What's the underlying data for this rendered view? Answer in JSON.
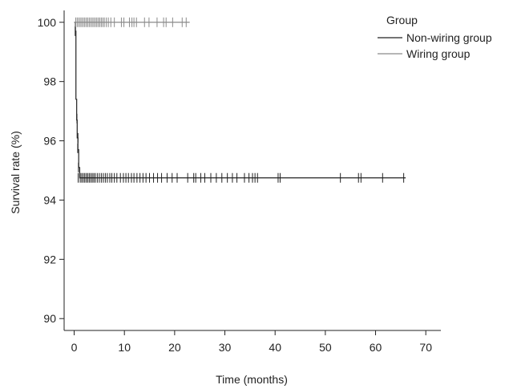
{
  "chart_data": {
    "type": "line",
    "subtype": "kaplan-meier",
    "title": "",
    "xlabel": "Time (months)",
    "ylabel": "Survival rate (%)",
    "xlim": [
      -2,
      73
    ],
    "ylim": [
      89.6,
      100.4
    ],
    "xticks": [
      0,
      10,
      20,
      30,
      40,
      50,
      60,
      70
    ],
    "yticks": [
      90,
      92,
      94,
      96,
      98,
      100
    ],
    "grid": false,
    "legend": {
      "title": "Group",
      "position": "top-right"
    },
    "series": [
      {
        "name": "Non-wiring group",
        "color": "#222222",
        "steps": [
          {
            "x": 0,
            "y": 100
          },
          {
            "x": 0.25,
            "y": 99.7
          },
          {
            "x": 0.35,
            "y": 97.4
          },
          {
            "x": 0.5,
            "y": 96.7
          },
          {
            "x": 0.6,
            "y": 96.1
          },
          {
            "x": 0.75,
            "y": 95.7
          },
          {
            "x": 0.9,
            "y": 95.1
          },
          {
            "x": 1.1,
            "y": 94.75
          }
        ],
        "end_x": 66,
        "censored": [
          {
            "x": 0.2,
            "y": 99.7
          },
          {
            "x": 0.55,
            "y": 96.75
          },
          {
            "x": 0.75,
            "y": 96.1
          },
          {
            "x": 0.7,
            "y": 95.75
          },
          {
            "x": 0.85,
            "y": 95.1
          },
          {
            "x": 0.8,
            "y": 94.75
          },
          {
            "x": 1.2,
            "y": 94.75
          },
          {
            "x": 1.5,
            "y": 94.75
          },
          {
            "x": 1.8,
            "y": 94.75
          },
          {
            "x": 2.1,
            "y": 94.75
          },
          {
            "x": 2.4,
            "y": 94.75
          },
          {
            "x": 2.7,
            "y": 94.75
          },
          {
            "x": 3.0,
            "y": 94.75
          },
          {
            "x": 3.3,
            "y": 94.75
          },
          {
            "x": 3.6,
            "y": 94.75
          },
          {
            "x": 3.9,
            "y": 94.75
          },
          {
            "x": 4.2,
            "y": 94.75
          },
          {
            "x": 4.6,
            "y": 94.75
          },
          {
            "x": 5.0,
            "y": 94.75
          },
          {
            "x": 5.4,
            "y": 94.75
          },
          {
            "x": 5.8,
            "y": 94.75
          },
          {
            "x": 6.2,
            "y": 94.75
          },
          {
            "x": 6.6,
            "y": 94.75
          },
          {
            "x": 7.1,
            "y": 94.75
          },
          {
            "x": 7.5,
            "y": 94.75
          },
          {
            "x": 8.0,
            "y": 94.75
          },
          {
            "x": 8.5,
            "y": 94.75
          },
          {
            "x": 9.2,
            "y": 94.75
          },
          {
            "x": 9.8,
            "y": 94.75
          },
          {
            "x": 10.3,
            "y": 94.75
          },
          {
            "x": 10.8,
            "y": 94.75
          },
          {
            "x": 11.4,
            "y": 94.75
          },
          {
            "x": 11.9,
            "y": 94.75
          },
          {
            "x": 12.5,
            "y": 94.75
          },
          {
            "x": 13.1,
            "y": 94.75
          },
          {
            "x": 13.7,
            "y": 94.75
          },
          {
            "x": 14.3,
            "y": 94.75
          },
          {
            "x": 15.0,
            "y": 94.75
          },
          {
            "x": 15.8,
            "y": 94.75
          },
          {
            "x": 16.6,
            "y": 94.75
          },
          {
            "x": 17.4,
            "y": 94.75
          },
          {
            "x": 18.5,
            "y": 94.75
          },
          {
            "x": 19.5,
            "y": 94.75
          },
          {
            "x": 20.5,
            "y": 94.75
          },
          {
            "x": 22.6,
            "y": 94.75
          },
          {
            "x": 23.8,
            "y": 94.75
          },
          {
            "x": 24.2,
            "y": 94.75
          },
          {
            "x": 25.2,
            "y": 94.75
          },
          {
            "x": 26.0,
            "y": 94.75
          },
          {
            "x": 27.2,
            "y": 94.75
          },
          {
            "x": 28.3,
            "y": 94.75
          },
          {
            "x": 29.4,
            "y": 94.75
          },
          {
            "x": 30.5,
            "y": 94.75
          },
          {
            "x": 31.5,
            "y": 94.75
          },
          {
            "x": 32.4,
            "y": 94.75
          },
          {
            "x": 33.9,
            "y": 94.75
          },
          {
            "x": 34.8,
            "y": 94.75
          },
          {
            "x": 35.5,
            "y": 94.75
          },
          {
            "x": 36.0,
            "y": 94.75
          },
          {
            "x": 36.5,
            "y": 94.75
          },
          {
            "x": 40.6,
            "y": 94.75
          },
          {
            "x": 41.0,
            "y": 94.75
          },
          {
            "x": 53.0,
            "y": 94.75
          },
          {
            "x": 56.6,
            "y": 94.75
          },
          {
            "x": 57.1,
            "y": 94.75
          },
          {
            "x": 61.4,
            "y": 94.75
          },
          {
            "x": 65.6,
            "y": 94.75
          }
        ]
      },
      {
        "name": "Wiring group",
        "color": "#8a8a8a",
        "steps": [
          {
            "x": 0,
            "y": 100
          }
        ],
        "end_x": 23,
        "censored": [
          {
            "x": 0.3,
            "y": 100
          },
          {
            "x": 0.6,
            "y": 100
          },
          {
            "x": 0.9,
            "y": 100
          },
          {
            "x": 1.2,
            "y": 100
          },
          {
            "x": 1.5,
            "y": 100
          },
          {
            "x": 1.8,
            "y": 100
          },
          {
            "x": 2.1,
            "y": 100
          },
          {
            "x": 2.4,
            "y": 100
          },
          {
            "x": 2.7,
            "y": 100
          },
          {
            "x": 3.0,
            "y": 100
          },
          {
            "x": 3.3,
            "y": 100
          },
          {
            "x": 3.6,
            "y": 100
          },
          {
            "x": 3.9,
            "y": 100
          },
          {
            "x": 4.2,
            "y": 100
          },
          {
            "x": 4.5,
            "y": 100
          },
          {
            "x": 4.8,
            "y": 100
          },
          {
            "x": 5.1,
            "y": 100
          },
          {
            "x": 5.4,
            "y": 100
          },
          {
            "x": 5.7,
            "y": 100
          },
          {
            "x": 6.0,
            "y": 100
          },
          {
            "x": 6.4,
            "y": 100
          },
          {
            "x": 6.8,
            "y": 100
          },
          {
            "x": 7.3,
            "y": 100
          },
          {
            "x": 8.0,
            "y": 100
          },
          {
            "x": 9.4,
            "y": 100
          },
          {
            "x": 9.9,
            "y": 100
          },
          {
            "x": 11.0,
            "y": 100
          },
          {
            "x": 11.5,
            "y": 100
          },
          {
            "x": 11.9,
            "y": 100
          },
          {
            "x": 12.4,
            "y": 100
          },
          {
            "x": 14.0,
            "y": 100
          },
          {
            "x": 14.9,
            "y": 100
          },
          {
            "x": 16.5,
            "y": 100
          },
          {
            "x": 17.8,
            "y": 100
          },
          {
            "x": 18.3,
            "y": 100
          },
          {
            "x": 19.6,
            "y": 100
          },
          {
            "x": 21.5,
            "y": 100
          },
          {
            "x": 22.3,
            "y": 100
          }
        ]
      }
    ]
  }
}
